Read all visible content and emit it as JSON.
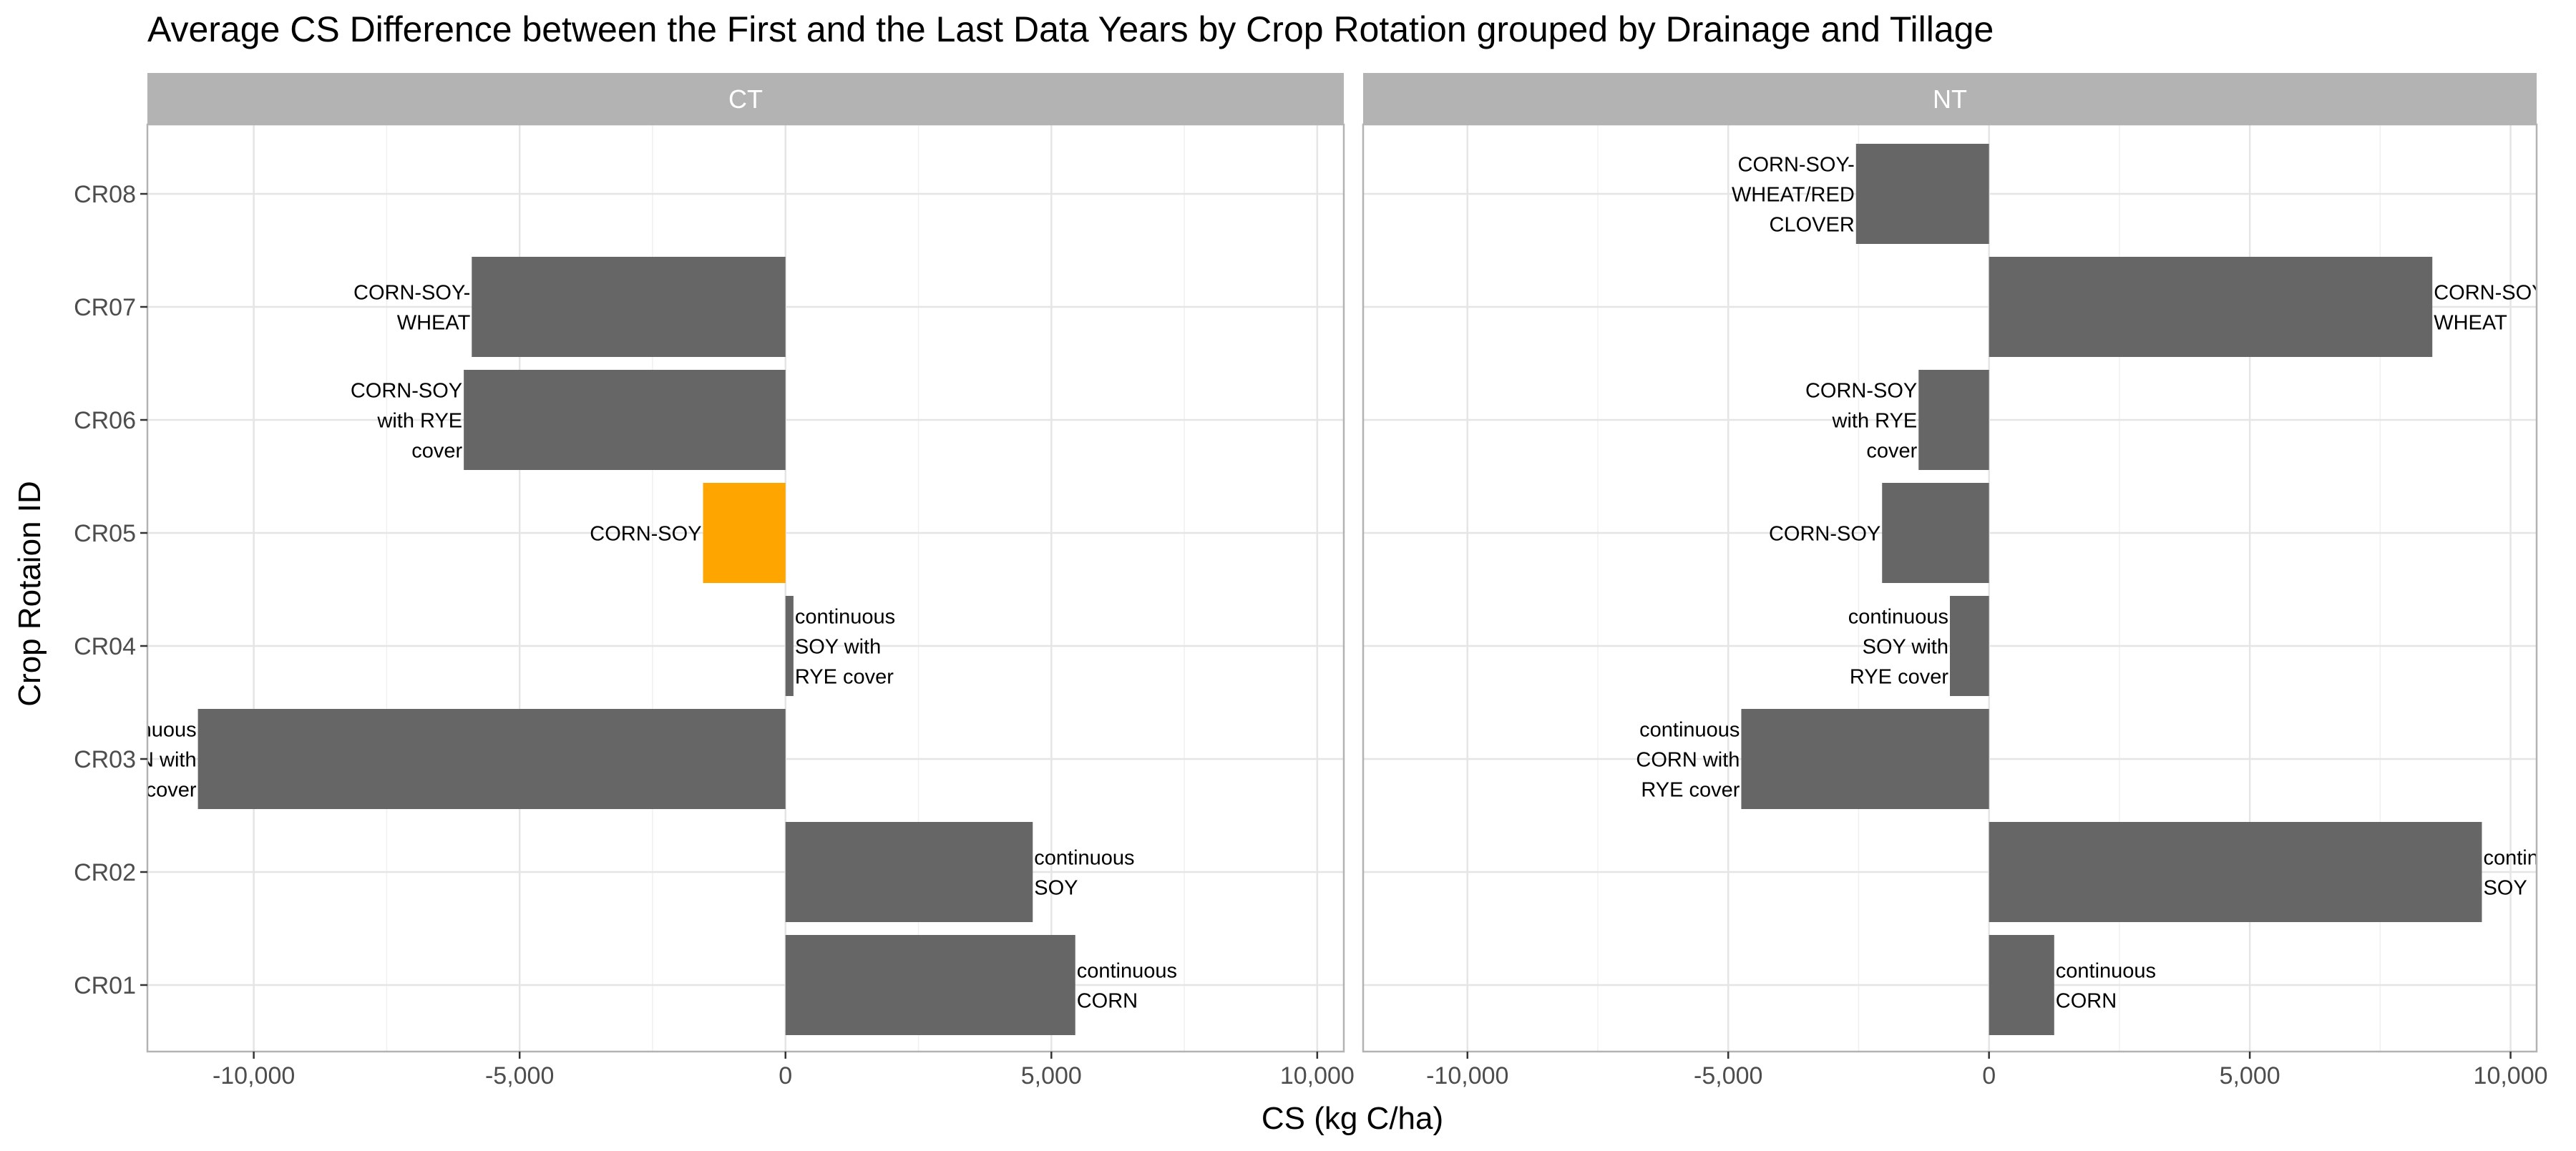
{
  "chart_data": {
    "type": "bar",
    "orientation": "horizontal",
    "title": "Average CS Difference between the First and the Last Data Years by Crop Rotation grouped by Drainage and Tillage",
    "xlabel": "CS (kg C/ha)",
    "ylabel": "Crop Rotaion ID",
    "xlim": [
      -12000,
      10500
    ],
    "x_ticks": [
      -10000,
      -5000,
      0,
      5000,
      10000
    ],
    "x_tick_labels": [
      "-10,000",
      "-5,000",
      "0",
      "5,000",
      "10,000"
    ],
    "categories": [
      "CR01",
      "CR02",
      "CR03",
      "CR04",
      "CR05",
      "CR06",
      "CR07",
      "CR08"
    ],
    "grid": true,
    "legend": "none",
    "colors": {
      "default": "#666666",
      "highlight": "#FFA500",
      "strip": "#B3B3B3",
      "grid": "#E5E5E5",
      "panel_border": "#B3B3B3"
    },
    "panels": [
      {
        "name": "CT",
        "bars": [
          {
            "category": "CR01",
            "value": 5450,
            "label": "continuous CORN",
            "label_lines": [
              "continuous",
              "CORN"
            ],
            "highlight": false
          },
          {
            "category": "CR02",
            "value": 4650,
            "label": "continuous SOY",
            "label_lines": [
              "continuous",
              "SOY"
            ],
            "highlight": false
          },
          {
            "category": "CR03",
            "value": -11050,
            "label": "continuous CORN with RYE cover",
            "label_lines": [
              "continuous",
              "CORN with",
              "RYE cover"
            ],
            "highlight": false
          },
          {
            "category": "CR04",
            "value": 150,
            "label": "continuous SOY with RYE cover",
            "label_lines": [
              "continuous",
              "SOY with",
              "RYE cover"
            ],
            "highlight": false
          },
          {
            "category": "CR05",
            "value": -1550,
            "label": "CORN-SOY",
            "label_lines": [
              "CORN-SOY"
            ],
            "highlight": true
          },
          {
            "category": "CR06",
            "value": -6050,
            "label": "CORN-SOY with RYE cover",
            "label_lines": [
              "CORN-SOY",
              "with RYE",
              "cover"
            ],
            "highlight": false
          },
          {
            "category": "CR07",
            "value": -5900,
            "label": "CORN-SOY-WHEAT",
            "label_lines": [
              "CORN-SOY-",
              "WHEAT"
            ],
            "highlight": false
          }
        ]
      },
      {
        "name": "NT",
        "bars": [
          {
            "category": "CR01",
            "value": 1250,
            "label": "continuous CORN",
            "label_lines": [
              "continuous",
              "CORN"
            ],
            "highlight": false
          },
          {
            "category": "CR02",
            "value": 9450,
            "label": "continuous SOY",
            "label_lines": [
              "continuous",
              "SOY"
            ],
            "highlight": false
          },
          {
            "category": "CR03",
            "value": -4750,
            "label": "continuous CORN with RYE cover",
            "label_lines": [
              "continuous",
              "CORN with",
              "RYE cover"
            ],
            "highlight": false
          },
          {
            "category": "CR04",
            "value": -750,
            "label": "continuous SOY with RYE cover",
            "label_lines": [
              "continuous",
              "SOY with",
              "RYE cover"
            ],
            "highlight": false
          },
          {
            "category": "CR05",
            "value": -2050,
            "label": "CORN-SOY",
            "label_lines": [
              "CORN-SOY"
            ],
            "highlight": false
          },
          {
            "category": "CR06",
            "value": -1350,
            "label": "CORN-SOY with RYE cover",
            "label_lines": [
              "CORN-SOY",
              "with RYE",
              "cover"
            ],
            "highlight": false
          },
          {
            "category": "CR07",
            "value": 8500,
            "label": "CORN-SOY-WHEAT",
            "label_lines": [
              "CORN-SOY-",
              "WHEAT"
            ],
            "highlight": false
          },
          {
            "category": "CR08",
            "value": -2550,
            "label": "CORN-SOY-WHEAT/RED CLOVER",
            "label_lines": [
              "CORN-SOY-",
              "WHEAT/RED",
              "CLOVER"
            ],
            "highlight": false
          }
        ]
      }
    ]
  }
}
